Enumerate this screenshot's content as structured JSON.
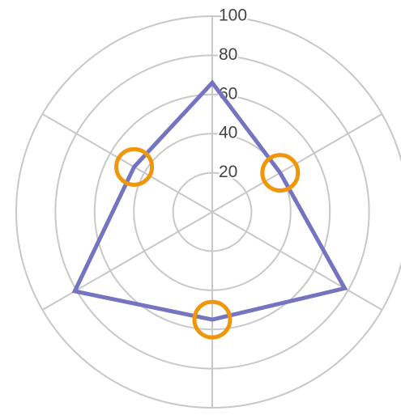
{
  "chart_data": {
    "type": "radar",
    "categories": [
      null,
      null,
      null,
      null,
      null,
      null
    ],
    "series": [
      {
        "name": null,
        "color": "#7474c0",
        "values": [
          66,
          40,
          78,
          55,
          81,
          46
        ]
      }
    ],
    "ylim": [
      0,
      100
    ],
    "yticks": [
      20,
      40,
      60,
      80,
      100
    ],
    "grid": true,
    "highlighted": [
      1,
      3,
      5
    ],
    "highlight_color": "#f0960a"
  }
}
